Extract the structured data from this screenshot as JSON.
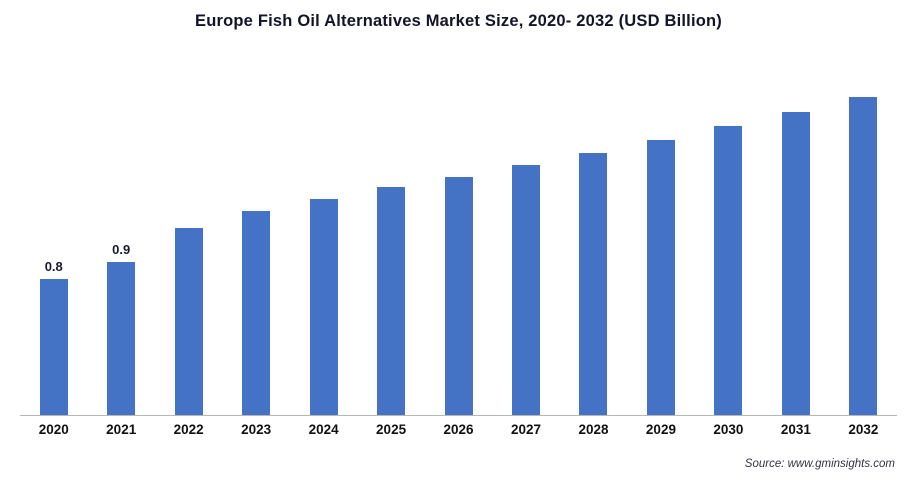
{
  "chart_data": {
    "type": "bar",
    "title": "Europe Fish Oil Alternatives Market Size, 2020- 2032 (USD Billion)",
    "categories": [
      "2020",
      "2021",
      "2022",
      "2023",
      "2024",
      "2025",
      "2026",
      "2027",
      "2028",
      "2029",
      "2030",
      "2031",
      "2032"
    ],
    "values": [
      0.8,
      0.9,
      1.1,
      1.2,
      1.27,
      1.34,
      1.4,
      1.47,
      1.54,
      1.62,
      1.7,
      1.78,
      1.87
    ],
    "data_labels": [
      "0.8",
      "0.9",
      "",
      "",
      "",
      "",
      "",
      "",
      "",
      "",
      "",
      "",
      ""
    ],
    "bar_color": "#4472C4",
    "ylim": [
      0,
      2.1
    ],
    "grid": false,
    "legend": "none",
    "xlabel": "",
    "ylabel": "",
    "source": "Source: www.gminsights.com"
  }
}
